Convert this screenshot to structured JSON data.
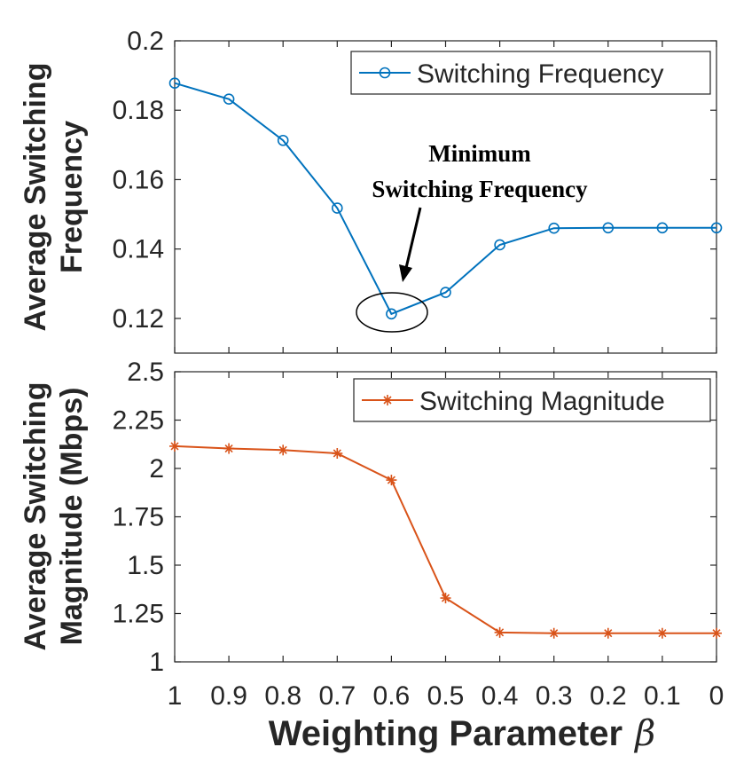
{
  "colors": {
    "series1": "#0072BD",
    "series2": "#D95319",
    "axis": "#262626",
    "annotation": "#000000"
  },
  "xaxis": {
    "label": "Weighting Parameter",
    "symbol": "β",
    "ticks": [
      1,
      0.9,
      0.8,
      0.7,
      0.6,
      0.5,
      0.4,
      0.3,
      0.2,
      0.1,
      0
    ],
    "tick_labels": [
      "1",
      "0.9",
      "0.8",
      "0.7",
      "0.6",
      "0.5",
      "0.4",
      "0.3",
      "0.2",
      "0.1",
      "0"
    ],
    "reversed": true
  },
  "chart_data": [
    {
      "type": "line",
      "marker": "circle",
      "x": [
        1,
        0.9,
        0.8,
        0.7,
        0.6,
        0.5,
        0.4,
        0.3,
        0.2,
        0.1,
        0
      ],
      "values": [
        0.1878,
        0.1832,
        0.1713,
        0.1518,
        0.1213,
        0.1275,
        0.1412,
        0.146,
        0.1461,
        0.1461,
        0.1461
      ],
      "legend": "Switching Frequency",
      "legend_position": "top-right",
      "ylabel_line1": "Average Switching",
      "ylabel_line2": "Frequency",
      "ylim": [
        0.11,
        0.2
      ],
      "yticks": [
        0.12,
        0.14,
        0.16,
        0.18,
        0.2
      ],
      "ytick_labels": [
        "0.12",
        "0.14",
        "0.16",
        "0.18",
        "0.2"
      ],
      "annotation": {
        "line1": "Minimum",
        "line2": "Switching Frequency",
        "target_x": 0.6
      }
    },
    {
      "type": "line",
      "marker": "asterisk",
      "x": [
        1,
        0.9,
        0.8,
        0.7,
        0.6,
        0.5,
        0.4,
        0.3,
        0.2,
        0.1,
        0
      ],
      "values": [
        2.115,
        2.103,
        2.095,
        2.078,
        1.94,
        1.33,
        1.152,
        1.148,
        1.148,
        1.148,
        1.148
      ],
      "legend": "Switching Magnitude",
      "legend_position": "top-right",
      "ylabel_line1": "Average Switching",
      "ylabel_line2": "Magnitude (Mbps)",
      "ylim": [
        1,
        2.5
      ],
      "yticks": [
        1,
        1.25,
        1.5,
        1.75,
        2,
        2.25,
        2.5
      ],
      "ytick_labels": [
        "1",
        "1.25",
        "1.5",
        "1.75",
        "2",
        "2.25",
        "2.5"
      ]
    }
  ]
}
